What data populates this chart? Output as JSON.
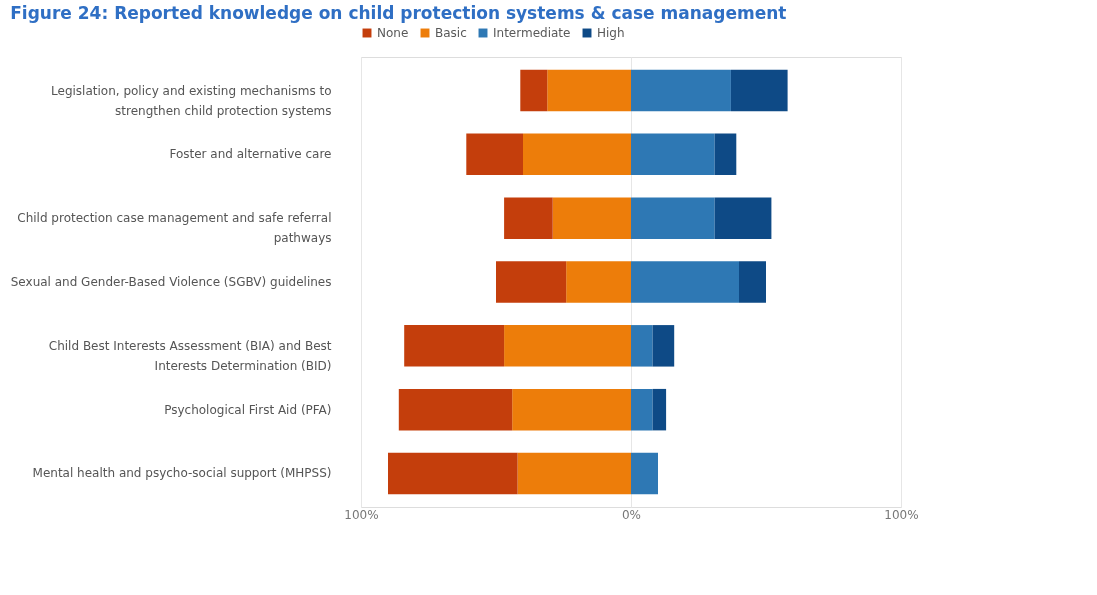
{
  "chart_data": {
    "type": "bar",
    "orientation": "horizontal",
    "stacked": true,
    "title": "Figure 24: Reported knowledge on child protection systems & case management",
    "categories": [
      "Legislation, policy and existing mechanisms to strengthen child protection systems",
      "Foster and alternative care",
      "Child protection case management and safe referral pathways",
      "Sexual and Gender-Based Violence (SGBV) guidelines",
      "Child Best Interests Assessment (BIA) and Best Interests Determination (BID)",
      "Psychological First Aid (PFA)",
      "Mental health and psycho-social support (MHPSS)"
    ],
    "series": [
      {
        "name": "Basic",
        "color": "#ed7d0a",
        "values": [
          -31,
          -40,
          -29,
          -24,
          -47,
          -44,
          -42
        ]
      },
      {
        "name": "None",
        "color": "#c43e0c",
        "values": [
          -10,
          -21,
          -18,
          -26,
          -37,
          -42,
          -48
        ]
      },
      {
        "name": "Intermediate",
        "color": "#2e78b4",
        "values": [
          37,
          31,
          31,
          40,
          8,
          8,
          10
        ]
      },
      {
        "name": "High",
        "color": "#0e4a86",
        "values": [
          21,
          8,
          21,
          10,
          8,
          5,
          0
        ]
      }
    ],
    "xlim": [
      -100,
      100
    ],
    "xticks": [
      {
        "value": -100,
        "label": "100%"
      },
      {
        "value": 0,
        "label": "0%"
      },
      {
        "value": 100,
        "label": "100%"
      }
    ],
    "grid": "x",
    "legend": "top left"
  }
}
